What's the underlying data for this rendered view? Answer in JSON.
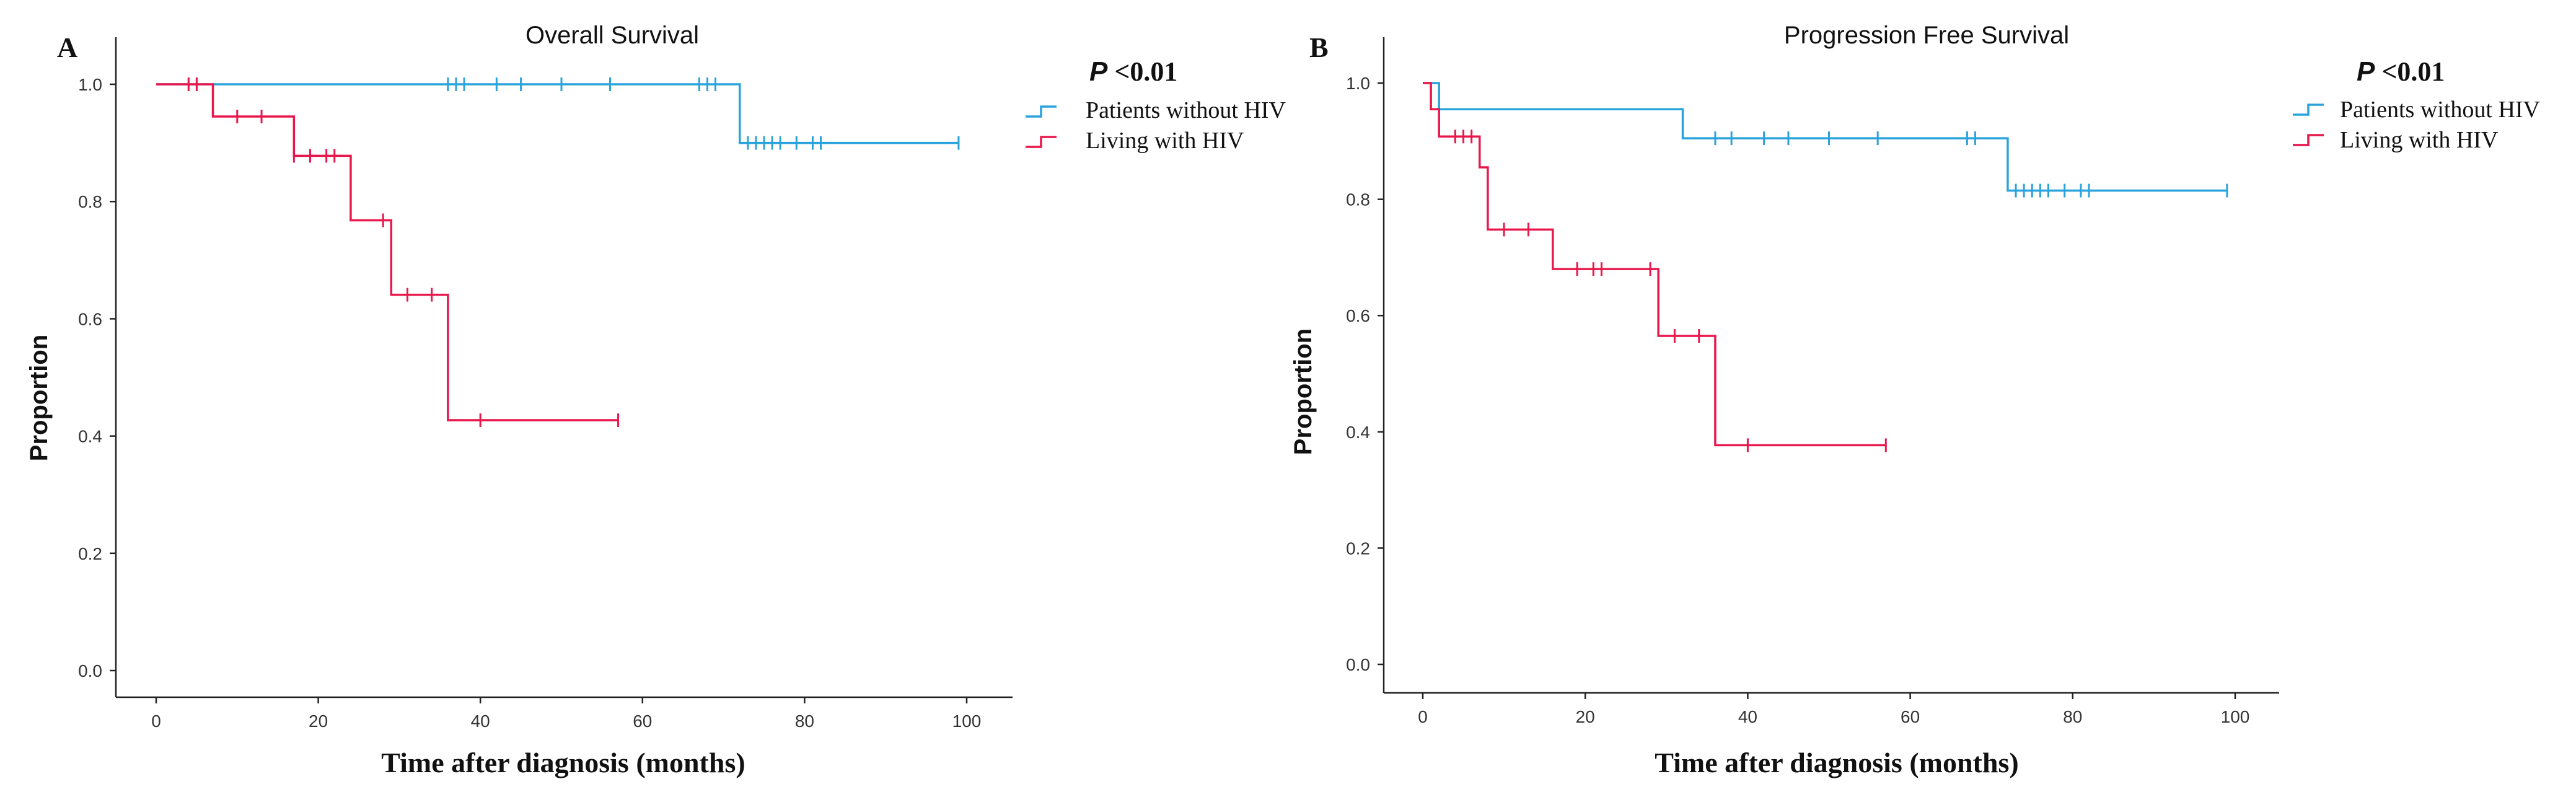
{
  "chart_data": [
    {
      "type": "line",
      "panel_label": "A",
      "title": "Overall Survival",
      "xlabel": "Time after diagnosis (months)",
      "ylabel": "Proportion",
      "xlim": [
        0,
        100
      ],
      "ylim": [
        0,
        1
      ],
      "xticks": [
        0,
        20,
        40,
        60,
        80,
        100
      ],
      "yticks": [
        0.0,
        0.2,
        0.4,
        0.6,
        0.8,
        1.0
      ],
      "p_value_prefix": "P",
      "p_value_rest": " <0.01",
      "legend_position": "top-right",
      "series": [
        {
          "name": "Patients without  HIV",
          "color": "#29A3DC",
          "steps": [
            [
              0,
              1.0
            ],
            [
              72,
              0.9
            ],
            [
              99,
              0.9
            ]
          ],
          "censored": [
            4,
            5,
            36,
            37,
            38,
            42,
            45,
            50,
            56,
            67,
            68,
            69,
            73,
            74,
            75,
            76,
            77,
            79,
            81,
            82,
            99
          ]
        },
        {
          "name": "Living with HIV",
          "color": "#E8174C",
          "steps": [
            [
              0,
              1.0
            ],
            [
              7,
              0.945
            ],
            [
              17,
              0.878
            ],
            [
              24,
              0.768
            ],
            [
              29,
              0.641
            ],
            [
              36,
              0.427
            ],
            [
              57,
              0.427
            ]
          ],
          "censored": [
            4,
            5,
            10,
            13,
            17,
            19,
            21,
            22,
            28,
            31,
            34,
            40,
            57
          ]
        }
      ]
    },
    {
      "type": "line",
      "panel_label": "B",
      "title": "Progression Free Survival",
      "xlabel": "Time after diagnosis (months)",
      "ylabel": "Proportion",
      "xlim": [
        0,
        100
      ],
      "ylim": [
        0,
        1
      ],
      "xticks": [
        0,
        20,
        40,
        60,
        80,
        100
      ],
      "yticks": [
        0.0,
        0.2,
        0.4,
        0.6,
        0.8,
        1.0
      ],
      "p_value_prefix": "P",
      "p_value_rest": " <0.01",
      "legend_position": "top-right",
      "series": [
        {
          "name": "Patients without  HIV",
          "color": "#29A3DC",
          "steps": [
            [
              0,
              1.0
            ],
            [
              2,
              0.955
            ],
            [
              32,
              0.905
            ],
            [
              72,
              0.815
            ],
            [
              99,
              0.815
            ]
          ],
          "censored": [
            36,
            38,
            42,
            45,
            50,
            56,
            67,
            68,
            73,
            74,
            75,
            76,
            77,
            79,
            81,
            82,
            99
          ]
        },
        {
          "name": "Living with HIV",
          "color": "#E8174C",
          "steps": [
            [
              0,
              1.0
            ],
            [
              1,
              0.955
            ],
            [
              2,
              0.908
            ],
            [
              7,
              0.855
            ],
            [
              8,
              0.748
            ],
            [
              16,
              0.68
            ],
            [
              29,
              0.565
            ],
            [
              36,
              0.377
            ],
            [
              57,
              0.377
            ]
          ],
          "censored": [
            4,
            5,
            6,
            10,
            13,
            19,
            21,
            22,
            28,
            31,
            34,
            40,
            57
          ]
        }
      ]
    }
  ]
}
